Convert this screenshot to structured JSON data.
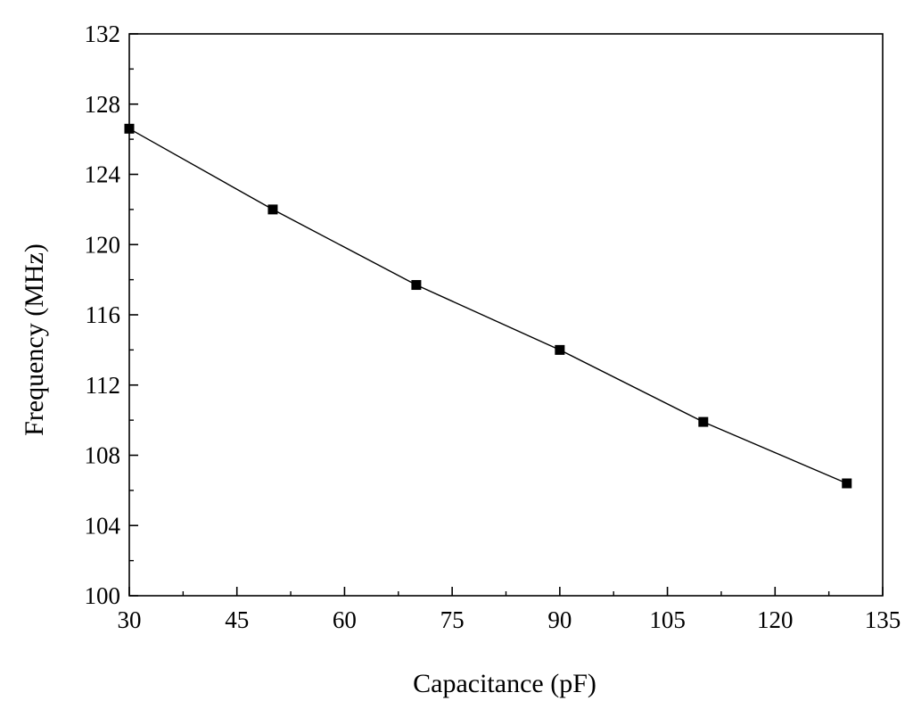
{
  "chart_data": {
    "type": "line",
    "title": "",
    "xlabel": "Capacitance (pF)",
    "ylabel": "Frequency (MHz)",
    "xlim": [
      30,
      135
    ],
    "ylim": [
      100,
      132
    ],
    "xticks": [
      30,
      45,
      60,
      75,
      90,
      105,
      120,
      135
    ],
    "yticks": [
      100,
      104,
      108,
      112,
      116,
      120,
      124,
      128,
      132
    ],
    "grid": false,
    "legend": "none",
    "marker": "square",
    "series": [
      {
        "x": [
          30,
          50,
          70,
          90,
          110,
          130
        ],
        "y": [
          126.6,
          122.0,
          117.7,
          114.0,
          109.9,
          106.4
        ]
      }
    ],
    "colors": {
      "line": "#000000",
      "marker": "#000000",
      "axis": "#000000"
    }
  }
}
